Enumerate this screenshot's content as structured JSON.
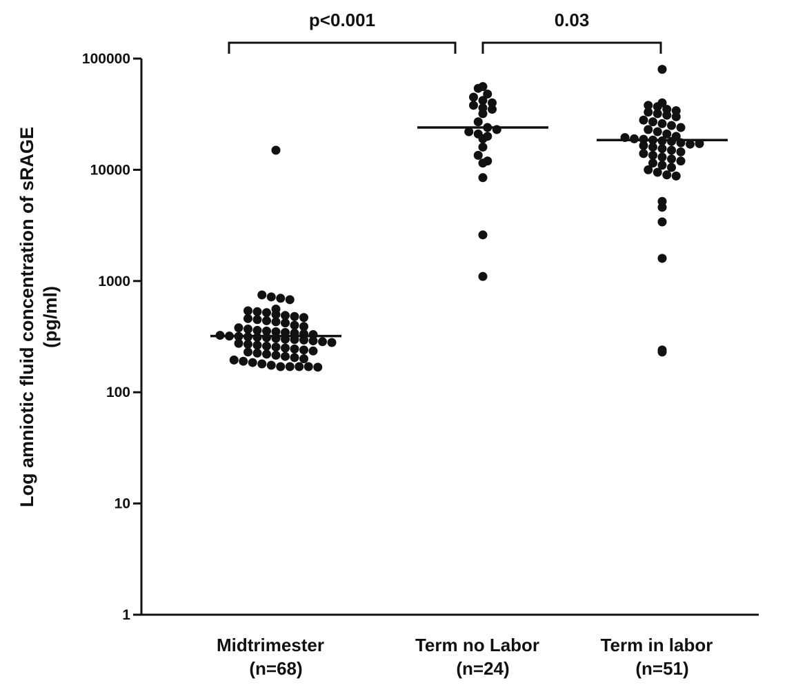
{
  "chart_data": {
    "type": "scatter",
    "subtype": "dot-plot",
    "yscale": "log",
    "ylim": [
      1,
      100000
    ],
    "ylabel": [
      "Log amniotic fluid concentration of sRAGE",
      "(pg/ml)"
    ],
    "y_ticks": [
      1,
      10,
      100,
      1000,
      10000,
      100000
    ],
    "y_tick_labels": [
      "1",
      "10",
      "100",
      "1000",
      "10000",
      "100000"
    ],
    "groups": [
      {
        "name": "Midtrimester",
        "n_label": "(n=68)",
        "median": 320,
        "values": [
          15000,
          750,
          720,
          700,
          680,
          560,
          540,
          530,
          520,
          500,
          490,
          480,
          470,
          460,
          450,
          440,
          430,
          420,
          400,
          390,
          380,
          370,
          360,
          355,
          350,
          345,
          340,
          335,
          330,
          325,
          320,
          318,
          315,
          312,
          310,
          305,
          300,
          298,
          295,
          290,
          285,
          280,
          275,
          270,
          265,
          260,
          255,
          250,
          245,
          240,
          235,
          230,
          225,
          220,
          215,
          210,
          205,
          200,
          195,
          190,
          185,
          180,
          175,
          170,
          170,
          170,
          170,
          168
        ]
      },
      {
        "name": "Term no Labor",
        "n_label": "(n=24)",
        "median": 24000,
        "values": [
          56000,
          54000,
          48000,
          45000,
          42000,
          40000,
          38000,
          36000,
          35000,
          32000,
          27000,
          24000,
          22000,
          21000,
          20000,
          19000,
          16000,
          13500,
          12000,
          11500,
          8500,
          2600,
          1100,
          23000
        ]
      },
      {
        "name": "Term in labor",
        "n_label": "(n=51)",
        "median": 18500,
        "values": [
          80000,
          40000,
          38000,
          37000,
          35000,
          34000,
          33000,
          32000,
          31000,
          30000,
          28000,
          27000,
          26000,
          25000,
          24000,
          23000,
          22000,
          21000,
          20000,
          19500,
          19000,
          18800,
          18500,
          18200,
          18000,
          17500,
          17000,
          16500,
          16000,
          15500,
          15000,
          14500,
          14000,
          13500,
          13000,
          12500,
          12000,
          11500,
          11000,
          10500,
          10000,
          9500,
          9000,
          8800,
          5200,
          4600,
          3400,
          1600,
          230,
          240,
          17200
        ]
      }
    ],
    "comparisons": [
      {
        "from": 0,
        "to": 1,
        "label": "p<0.001"
      },
      {
        "from": 1,
        "to": 2,
        "label": "0.03"
      }
    ]
  }
}
